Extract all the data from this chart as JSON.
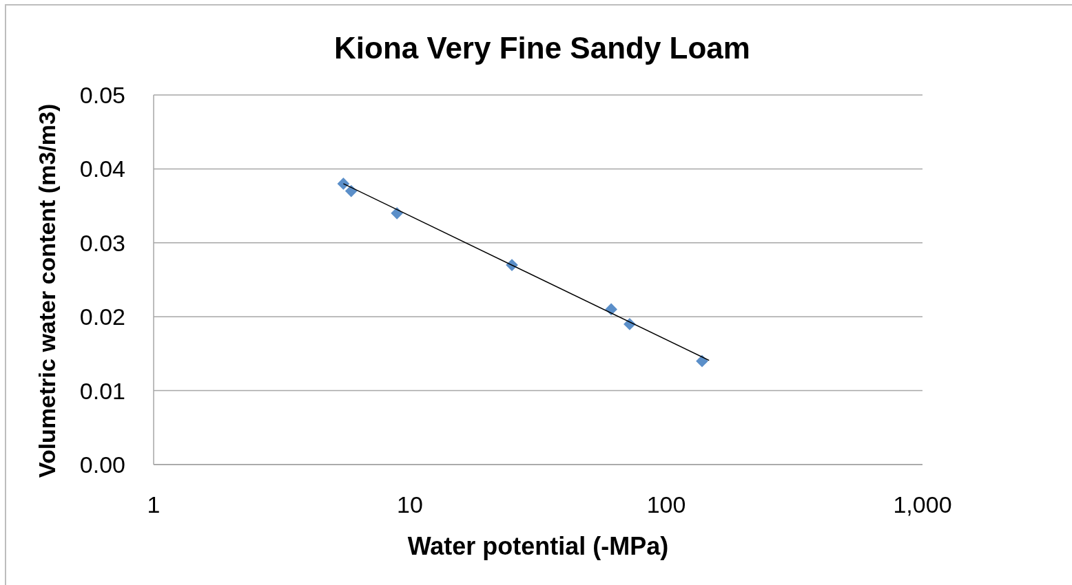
{
  "chart_data": {
    "type": "scatter",
    "title": "Kiona Very Fine Sandy Loam",
    "xlabel": "Water potential (-MPa)",
    "ylabel": "Volumetric water content (m3/m3)",
    "log": "x",
    "xlim": [
      1,
      1000
    ],
    "xticks": [
      1,
      10,
      100,
      {
        "value": 1000,
        "label": "1,000"
      }
    ],
    "ylim": [
      0,
      0.05
    ],
    "yticks": [
      {
        "value": 0,
        "label": "0.00"
      },
      0.01,
      0.02,
      0.03,
      0.04,
      0.05
    ],
    "grid": "y",
    "marker": "diamond",
    "series": [
      {
        "color": "#5b8fc9",
        "x": [
          5.5,
          5.9,
          8.9,
          25,
          61,
          72,
          138
        ],
        "values": [
          0.038,
          0.037,
          0.034,
          0.027,
          0.021,
          0.019,
          0.014
        ]
      },
      {
        "type": "line",
        "color": "#000000",
        "marker": "none",
        "x": [
          5.5,
          147
        ],
        "values": [
          0.038,
          0.0141
        ]
      }
    ]
  }
}
